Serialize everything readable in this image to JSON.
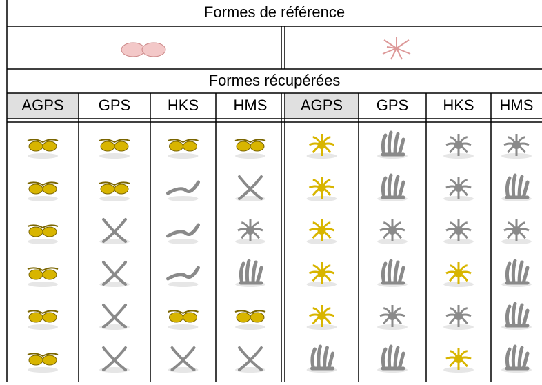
{
  "header": {
    "title": "Formes de référence"
  },
  "subheader": {
    "title": "Formes récupérées"
  },
  "columns": [
    "AGPS",
    "GPS",
    "HKS",
    "HMS",
    "AGPS",
    "GPS",
    "HKS",
    "HMS"
  ]
}
